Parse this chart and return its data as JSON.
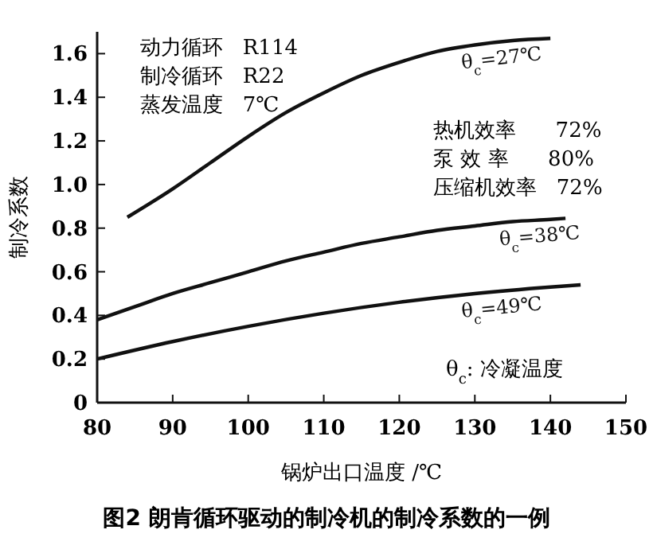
{
  "chart_data": {
    "type": "line",
    "title": "图2 朗肯循环驱动的制冷机的制冷系数的一例",
    "xlabel": "锅炉出口温度 /℃",
    "ylabel": "制冷系数",
    "xlim": [
      80,
      150
    ],
    "ylim": [
      0,
      1.7
    ],
    "xticks": [
      80,
      90,
      100,
      110,
      120,
      130,
      140,
      150
    ],
    "yticks": [
      0,
      {
        "value": 0.2,
        "label": "0.2"
      },
      {
        "value": 0.4,
        "label": "0.4"
      },
      {
        "value": 0.6,
        "label": "0.6"
      },
      {
        "value": 0.8,
        "label": "0.8"
      },
      {
        "value": 1.0,
        "label": "1.0"
      },
      {
        "value": 1.2,
        "label": "1.2"
      },
      {
        "value": 1.4,
        "label": "1.4"
      },
      {
        "value": 1.6,
        "label": "1.6"
      }
    ],
    "grid": false,
    "marker": "none",
    "line_style": "solid",
    "series": [
      {
        "name": "θ$_{c}$=27℃",
        "color": "#111111",
        "x": [
          84,
          90,
          95,
          100,
          105,
          110,
          115,
          120,
          125,
          130,
          135,
          140
        ],
        "values": [
          0.85,
          0.98,
          1.1,
          1.22,
          1.33,
          1.42,
          1.5,
          1.56,
          1.61,
          1.64,
          1.66,
          1.67
        ]
      },
      {
        "name": "θ$_{c}$=38℃",
        "color": "#111111",
        "x": [
          80,
          85,
          90,
          95,
          100,
          105,
          110,
          115,
          120,
          125,
          130,
          135,
          140,
          142
        ],
        "values": [
          0.38,
          0.44,
          0.5,
          0.55,
          0.6,
          0.65,
          0.69,
          0.73,
          0.76,
          0.79,
          0.81,
          0.83,
          0.84,
          0.845
        ]
      },
      {
        "name": "θ$_{c}$=49℃",
        "color": "#111111",
        "x": [
          80,
          90,
          100,
          110,
          120,
          130,
          140,
          144
        ],
        "values": [
          0.2,
          0.28,
          0.35,
          0.41,
          0.46,
          0.5,
          0.53,
          0.54
        ]
      }
    ],
    "annotations": [
      "动力循环   R114",
      "制冷循环   R22",
      "蒸发温度   7℃",
      "热机效率      72%",
      "泵 效 率      80%",
      "压缩机效率   72%",
      "θ$_{c}$: 冷凝温度"
    ]
  }
}
